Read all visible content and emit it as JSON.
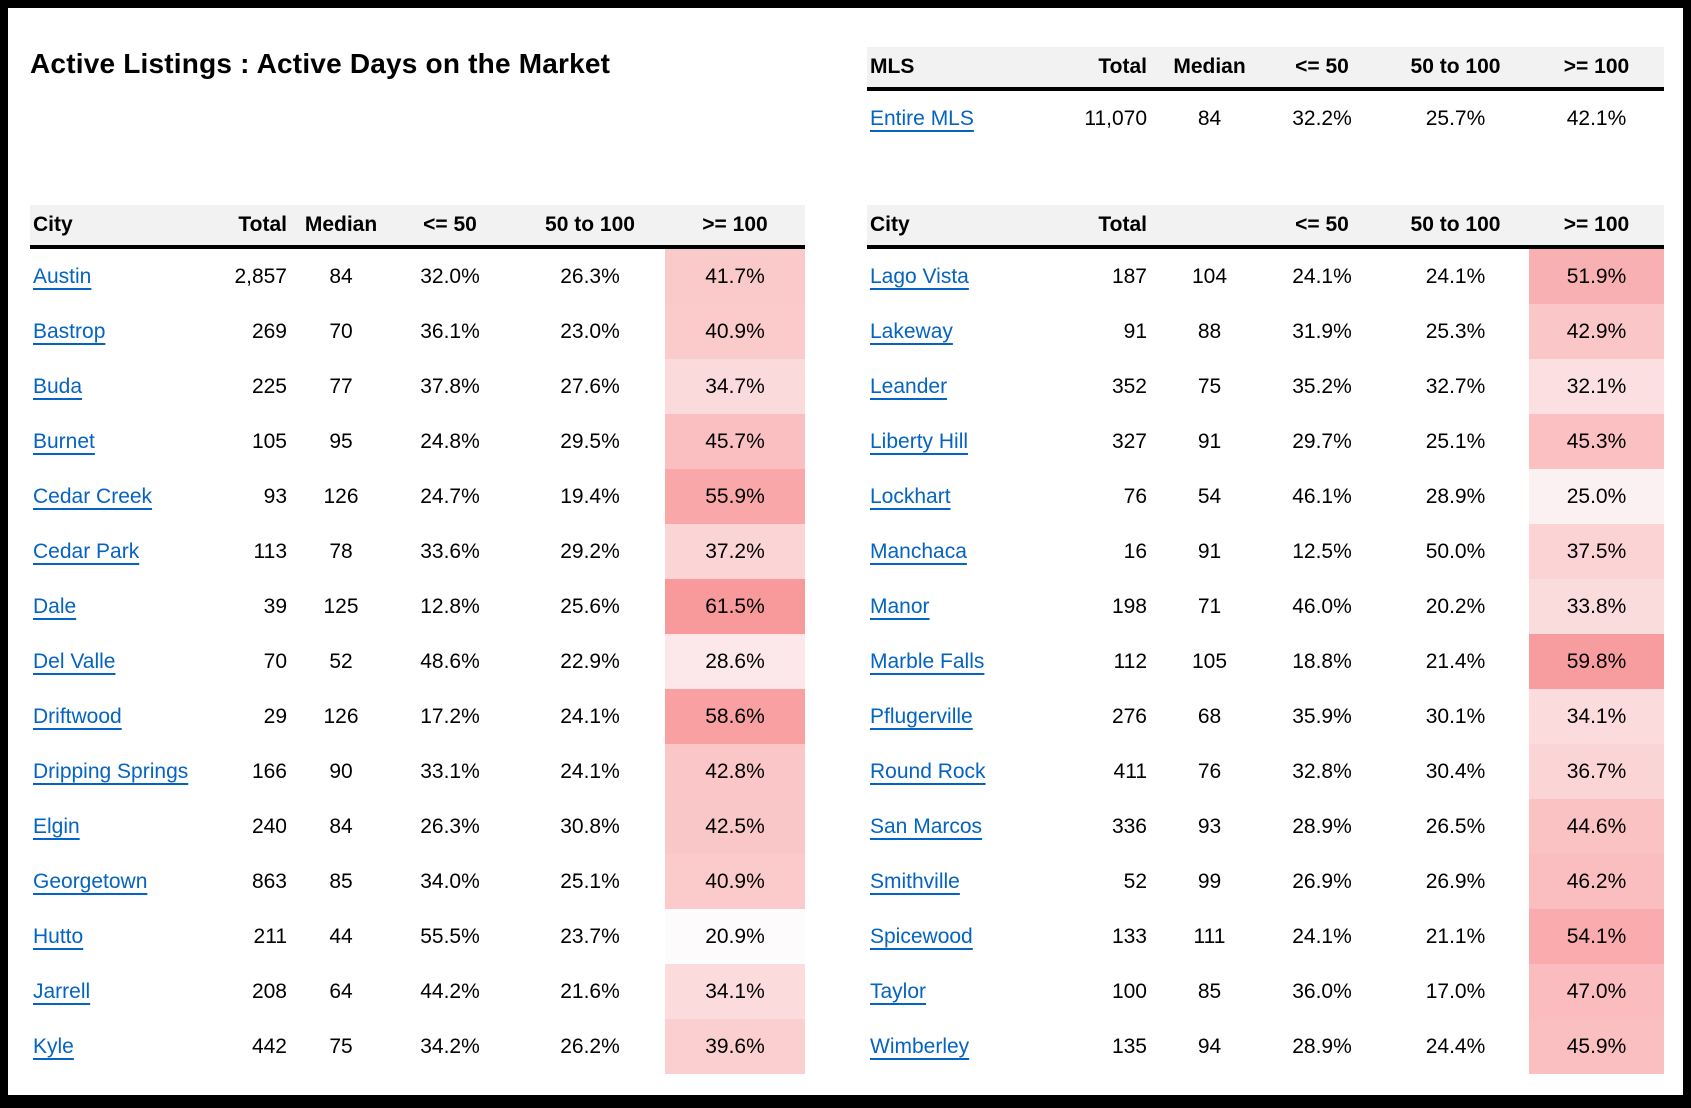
{
  "title": "Active Listings : Active Days on the Market",
  "colors": {
    "link_blue": "#0563C1",
    "header_bg": "#F2F2F2",
    "frame_black": "#000000",
    "text": "#000000"
  },
  "heat_scale": {
    "applies_to_column": ">= 100",
    "min_value": 20.9,
    "max_value": 61.5,
    "min_color": "#FDFBFC",
    "max_color": "#F8999B"
  },
  "mls_table": {
    "headers": {
      "name": "MLS",
      "total": "Total",
      "median": "Median",
      "le50": "<= 50",
      "mid": "50 to 100",
      "ge100": ">= 100"
    },
    "rows": [
      {
        "name": "Entire MLS",
        "total": "11,070",
        "median": "84",
        "le50": "32.2%",
        "mid": "25.7%",
        "ge100": "42.1%"
      }
    ]
  },
  "left_table": {
    "headers": {
      "name": "City",
      "total": "Total",
      "median": "Median",
      "le50": "<= 50",
      "mid": "50 to 100",
      "ge100": ">= 100"
    },
    "rows": [
      {
        "name": "Austin",
        "total": "2,857",
        "median": "84",
        "le50": "32.0%",
        "mid": "26.3%",
        "ge100": "41.7%"
      },
      {
        "name": "Bastrop",
        "total": "269",
        "median": "70",
        "le50": "36.1%",
        "mid": "23.0%",
        "ge100": "40.9%"
      },
      {
        "name": "Buda",
        "total": "225",
        "median": "77",
        "le50": "37.8%",
        "mid": "27.6%",
        "ge100": "34.7%"
      },
      {
        "name": "Burnet",
        "total": "105",
        "median": "95",
        "le50": "24.8%",
        "mid": "29.5%",
        "ge100": "45.7%"
      },
      {
        "name": "Cedar Creek",
        "total": "93",
        "median": "126",
        "le50": "24.7%",
        "mid": "19.4%",
        "ge100": "55.9%"
      },
      {
        "name": "Cedar Park",
        "total": "113",
        "median": "78",
        "le50": "33.6%",
        "mid": "29.2%",
        "ge100": "37.2%"
      },
      {
        "name": "Dale",
        "total": "39",
        "median": "125",
        "le50": "12.8%",
        "mid": "25.6%",
        "ge100": "61.5%"
      },
      {
        "name": "Del Valle",
        "total": "70",
        "median": "52",
        "le50": "48.6%",
        "mid": "22.9%",
        "ge100": "28.6%"
      },
      {
        "name": "Driftwood",
        "total": "29",
        "median": "126",
        "le50": "17.2%",
        "mid": "24.1%",
        "ge100": "58.6%"
      },
      {
        "name": "Dripping Springs",
        "total": "166",
        "median": "90",
        "le50": "33.1%",
        "mid": "24.1%",
        "ge100": "42.8%"
      },
      {
        "name": "Elgin",
        "total": "240",
        "median": "84",
        "le50": "26.3%",
        "mid": "30.8%",
        "ge100": "42.5%"
      },
      {
        "name": "Georgetown",
        "total": "863",
        "median": "85",
        "le50": "34.0%",
        "mid": "25.1%",
        "ge100": "40.9%"
      },
      {
        "name": "Hutto",
        "total": "211",
        "median": "44",
        "le50": "55.5%",
        "mid": "23.7%",
        "ge100": "20.9%"
      },
      {
        "name": "Jarrell",
        "total": "208",
        "median": "64",
        "le50": "44.2%",
        "mid": "21.6%",
        "ge100": "34.1%"
      },
      {
        "name": "Kyle",
        "total": "442",
        "median": "75",
        "le50": "34.2%",
        "mid": "26.2%",
        "ge100": "39.6%"
      }
    ]
  },
  "right_table": {
    "headers": {
      "name": "City",
      "total": "Total",
      "median": "",
      "le50": "<= 50",
      "mid": "50 to 100",
      "ge100": ">= 100"
    },
    "rows": [
      {
        "name": "Lago Vista",
        "total": "187",
        "median": "104",
        "le50": "24.1%",
        "mid": "24.1%",
        "ge100": "51.9%"
      },
      {
        "name": "Lakeway",
        "total": "91",
        "median": "88",
        "le50": "31.9%",
        "mid": "25.3%",
        "ge100": "42.9%"
      },
      {
        "name": "Leander",
        "total": "352",
        "median": "75",
        "le50": "35.2%",
        "mid": "32.7%",
        "ge100": "32.1%"
      },
      {
        "name": "Liberty Hill",
        "total": "327",
        "median": "91",
        "le50": "29.7%",
        "mid": "25.1%",
        "ge100": "45.3%"
      },
      {
        "name": "Lockhart",
        "total": "76",
        "median": "54",
        "le50": "46.1%",
        "mid": "28.9%",
        "ge100": "25.0%"
      },
      {
        "name": "Manchaca",
        "total": "16",
        "median": "91",
        "le50": "12.5%",
        "mid": "50.0%",
        "ge100": "37.5%"
      },
      {
        "name": "Manor",
        "total": "198",
        "median": "71",
        "le50": "46.0%",
        "mid": "20.2%",
        "ge100": "33.8%"
      },
      {
        "name": "Marble Falls",
        "total": "112",
        "median": "105",
        "le50": "18.8%",
        "mid": "21.4%",
        "ge100": "59.8%"
      },
      {
        "name": "Pflugerville",
        "total": "276",
        "median": "68",
        "le50": "35.9%",
        "mid": "30.1%",
        "ge100": "34.1%"
      },
      {
        "name": "Round Rock",
        "total": "411",
        "median": "76",
        "le50": "32.8%",
        "mid": "30.4%",
        "ge100": "36.7%"
      },
      {
        "name": "San Marcos",
        "total": "336",
        "median": "93",
        "le50": "28.9%",
        "mid": "26.5%",
        "ge100": "44.6%"
      },
      {
        "name": "Smithville",
        "total": "52",
        "median": "99",
        "le50": "26.9%",
        "mid": "26.9%",
        "ge100": "46.2%"
      },
      {
        "name": "Spicewood",
        "total": "133",
        "median": "111",
        "le50": "24.1%",
        "mid": "21.1%",
        "ge100": "54.1%"
      },
      {
        "name": "Taylor",
        "total": "100",
        "median": "85",
        "le50": "36.0%",
        "mid": "17.0%",
        "ge100": "47.0%"
      },
      {
        "name": "Wimberley",
        "total": "135",
        "median": "94",
        "le50": "28.9%",
        "mid": "24.4%",
        "ge100": "45.9%"
      }
    ]
  }
}
